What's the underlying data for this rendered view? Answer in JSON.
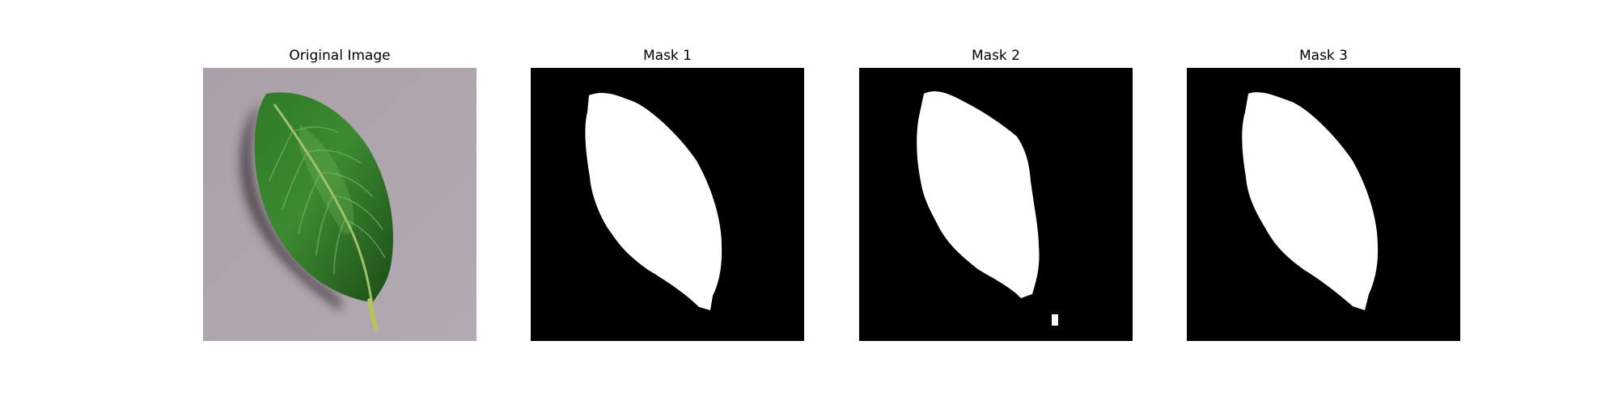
{
  "panels": [
    {
      "title": "Original Image",
      "kind": "photo"
    },
    {
      "title": "Mask 1",
      "kind": "mask"
    },
    {
      "title": "Mask 2",
      "kind": "mask"
    },
    {
      "title": "Mask 3",
      "kind": "mask"
    }
  ],
  "colors": {
    "background": "#ffffff",
    "mask_background": "#000000",
    "mask_foreground": "#ffffff",
    "photo_surface": "#a89ca6",
    "leaf_dark": "#1c4d18",
    "leaf_mid": "#2f7a27",
    "leaf_light": "#5a9e45",
    "leaf_shadow": "#3a3038",
    "stem": "#b7c45a"
  }
}
